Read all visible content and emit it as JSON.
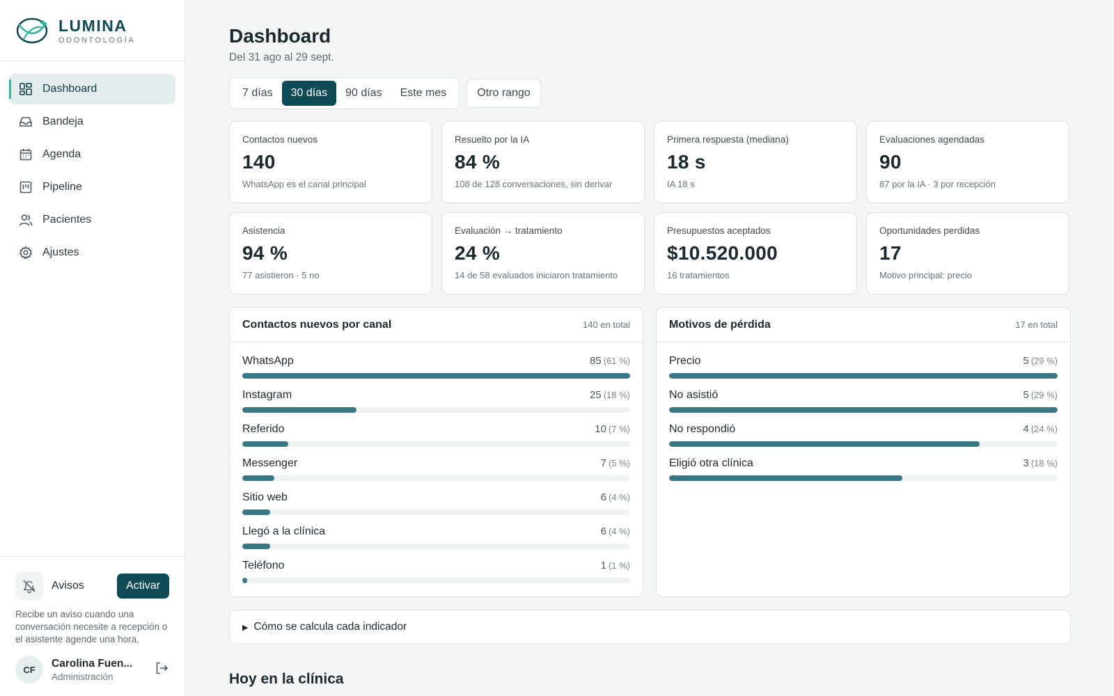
{
  "brand": {
    "name": "LUMINA",
    "subtitle": "ODONTOLOGÍA"
  },
  "sidebar": {
    "items": [
      {
        "label": "Dashboard",
        "icon": "dashboard-icon",
        "active": true
      },
      {
        "label": "Bandeja",
        "icon": "inbox-icon",
        "active": false
      },
      {
        "label": "Agenda",
        "icon": "calendar-icon",
        "active": false
      },
      {
        "label": "Pipeline",
        "icon": "kanban-icon",
        "active": false
      },
      {
        "label": "Pacientes",
        "icon": "users-icon",
        "active": false
      },
      {
        "label": "Ajustes",
        "icon": "gear-icon",
        "active": false
      }
    ],
    "avisos": {
      "label": "Avisos",
      "button": "Activar",
      "description": "Recibe un aviso cuando una conversación necesite a recepción o el asistente agende una hora."
    },
    "user": {
      "initials": "CF",
      "name": "Carolina Fuen...",
      "role": "Administración"
    }
  },
  "header": {
    "title": "Dashboard",
    "subtitle": "Del 31 ago al 29 sept."
  },
  "range": {
    "options": [
      "7 días",
      "30 días",
      "90 días",
      "Este mes"
    ],
    "selected": "30 días",
    "other": "Otro rango"
  },
  "kpis": [
    {
      "label": "Contactos nuevos",
      "value": "140",
      "note": "WhatsApp es el canal principal"
    },
    {
      "label": "Resuelto por la IA",
      "value": "84 %",
      "note": "108 de 128 conversaciones, sin derivar"
    },
    {
      "label": "Primera respuesta (mediana)",
      "value": "18 s",
      "note": "IA 18 s"
    },
    {
      "label": "Evaluaciones agendadas",
      "value": "90",
      "note": "87 por la IA · 3 por recepción"
    },
    {
      "label": "Asistencia",
      "value": "94 %",
      "note": "77 asistieron · 5 no"
    },
    {
      "label": "Evaluación → tratamiento",
      "value": "24 %",
      "note": "14 de 58 evaluados iniciaron tratamiento"
    },
    {
      "label": "Presupuestos aceptados",
      "value": "$10.520.000",
      "note": "16 tratamientos"
    },
    {
      "label": "Oportunidades perdidas",
      "value": "17",
      "note": "Motivo principal: precio"
    }
  ],
  "channels": {
    "title": "Contactos nuevos por canal",
    "total": "140 en total",
    "rows": [
      {
        "name": "WhatsApp",
        "value": "85",
        "pct": "(61 %)",
        "fill": 1.0
      },
      {
        "name": "Instagram",
        "value": "25",
        "pct": "(18 %)",
        "fill": 0.294
      },
      {
        "name": "Referido",
        "value": "10",
        "pct": "(7 %)",
        "fill": 0.118
      },
      {
        "name": "Messenger",
        "value": "7",
        "pct": "(5 %)",
        "fill": 0.082
      },
      {
        "name": "Sitio web",
        "value": "6",
        "pct": "(4 %)",
        "fill": 0.071
      },
      {
        "name": "Llegó a la clínica",
        "value": "6",
        "pct": "(4 %)",
        "fill": 0.071
      },
      {
        "name": "Teléfono",
        "value": "1",
        "pct": "(1 %)",
        "fill": 0.012
      }
    ]
  },
  "losses": {
    "title": "Motivos de pérdida",
    "total": "17 en total",
    "rows": [
      {
        "name": "Precio",
        "value": "5",
        "pct": "(29 %)",
        "fill": 1.0
      },
      {
        "name": "No asistió",
        "value": "5",
        "pct": "(29 %)",
        "fill": 1.0
      },
      {
        "name": "No respondió",
        "value": "4",
        "pct": "(24 %)",
        "fill": 0.8
      },
      {
        "name": "Eligió otra clínica",
        "value": "3",
        "pct": "(18 %)",
        "fill": 0.6
      }
    ]
  },
  "explain": {
    "label": "Cómo se calcula cada indicador"
  },
  "today": {
    "title": "Hoy en la clínica"
  },
  "colors": {
    "accent": "#0f4a57",
    "bar": "#3a7785",
    "active_marker": "#2fb5a0"
  }
}
